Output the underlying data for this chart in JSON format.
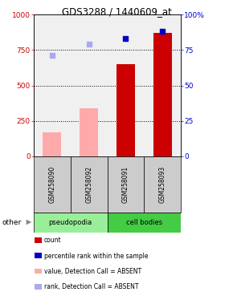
{
  "title": "GDS3288 / 1440609_at",
  "samples": [
    "GSM258090",
    "GSM258092",
    "GSM258091",
    "GSM258093"
  ],
  "bar_values_absent": [
    170,
    340,
    null,
    null
  ],
  "bar_values_present": [
    null,
    null,
    650,
    870
  ],
  "dot_rank_absent": [
    710,
    790,
    null,
    null
  ],
  "dot_rank_present": [
    null,
    null,
    830,
    880
  ],
  "ylim_left": [
    0,
    1000
  ],
  "ylim_right": [
    0,
    100
  ],
  "dotted_lines": [
    250,
    500,
    750
  ],
  "bar_color_absent": "#ffaaaa",
  "bar_color_present": "#cc0000",
  "dot_color_absent": "#aaaaee",
  "dot_color_present": "#0000cc",
  "group_colors": {
    "pseudopodia": "#99ee99",
    "cell bodies": "#44cc44"
  },
  "label_color_left": "#cc0000",
  "label_color_right": "#0000cc",
  "bg_plot": "#f0f0f0",
  "bg_sample_label": "#cccccc"
}
